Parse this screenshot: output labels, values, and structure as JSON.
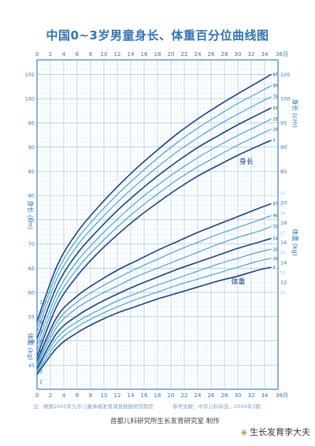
{
  "title": "中国0~3岁男童身长、体重百分位曲线图",
  "note": {
    "source": "注：根据2005年九市儿童体格发育调查数据研究制定",
    "reference": "参考文献：中华儿科杂志，2009年3期"
  },
  "credit": "首都儿科研究所生长发育研究室 制作",
  "watermark": {
    "icon": "wechat-like-logo",
    "text": "生长发育李大夫"
  },
  "colors": {
    "primary": "#1d3f8a",
    "outer_curve": "#1d3f8a",
    "inner_curve": "#38a0c8",
    "frame": "#2f73b8",
    "grid_minor": "#d5e8f3",
    "grid_major": "#8fbddd",
    "label": "#2f73b8"
  },
  "chart_data": {
    "type": "line",
    "title": "中国0~3岁男童身长、体重百分位曲线图",
    "x": {
      "label": "月",
      "end_label": "36月",
      "range": [
        0,
        36
      ],
      "ticks": [
        0,
        2,
        4,
        6,
        8,
        10,
        12,
        14,
        16,
        18,
        20,
        22,
        24,
        26,
        28,
        30,
        32,
        34
      ],
      "tick_labels": [
        "0",
        "2",
        "4",
        "6",
        "8",
        "10",
        "12",
        "14",
        "16",
        "18",
        "20",
        "22",
        "24",
        "26",
        "28",
        "30",
        "32",
        "34",
        "36月"
      ]
    },
    "y_left": {
      "range": [
        40,
        108
      ],
      "ticks": [
        45,
        50,
        55,
        60,
        65,
        70,
        75,
        80,
        85,
        90,
        95,
        100,
        105
      ]
    },
    "y_right_height": {
      "label": "身长 (cm)",
      "ticks": [
        85,
        90,
        95,
        100,
        105
      ]
    },
    "y_right_weight": {
      "label": "体重 (kg)",
      "range": [
        2,
        22
      ],
      "ticks": [
        12,
        14,
        16,
        18,
        20
      ],
      "minor_ticks": [
        11,
        13,
        15,
        17,
        19,
        21
      ]
    },
    "y_left_weight": {
      "label": "体重 (kg)",
      "ticks": [
        2,
        3,
        4,
        5,
        6,
        7,
        8,
        9,
        10
      ]
    },
    "y_left_height_label": "身长 (cm)",
    "groups": {
      "height": {
        "label": "身长",
        "unit": "cm",
        "x": [
          0,
          3,
          6,
          9,
          12,
          15,
          18,
          21,
          24,
          27,
          30,
          33,
          35
        ],
        "series": [
          {
            "name": "97",
            "values": [
              54.0,
              65.5,
              72.4,
              77.4,
              81.8,
              85.8,
              89.4,
              92.8,
              95.8,
              98.5,
              101.0,
              103.4,
              105.0
            ]
          },
          {
            "name": "90",
            "values": [
              52.9,
              64.2,
              71.0,
              75.9,
              80.2,
              84.1,
              87.7,
              91.0,
              93.9,
              96.5,
              99.0,
              101.2,
              102.7
            ]
          },
          {
            "name": "75",
            "values": [
              51.8,
              62.9,
              69.6,
              74.4,
              78.6,
              82.4,
              85.9,
              89.1,
              91.9,
              94.5,
              96.8,
              99.0,
              100.4
            ]
          },
          {
            "name": "50",
            "values": [
              50.4,
              61.4,
              68.0,
              72.7,
              76.9,
              80.6,
              84.0,
              87.1,
              89.9,
              92.3,
              94.6,
              96.7,
              98.1
            ]
          },
          {
            "name": "25",
            "values": [
              49.1,
              59.9,
              66.4,
              71.0,
              75.1,
              78.8,
              82.1,
              85.1,
              87.8,
              90.2,
              92.4,
              94.4,
              95.8
            ]
          },
          {
            "name": "10",
            "values": [
              47.9,
              58.6,
              64.9,
              69.5,
              73.5,
              77.1,
              80.3,
              83.3,
              85.9,
              88.2,
              90.4,
              92.4,
              93.7
            ]
          },
          {
            "name": "3",
            "values": [
              46.8,
              57.3,
              63.4,
              68.0,
              71.9,
              75.4,
              78.5,
              81.4,
              84.0,
              86.2,
              88.3,
              90.2,
              91.4
            ]
          }
        ]
      },
      "weight": {
        "label": "体重",
        "unit": "kg",
        "x": [
          0,
          3,
          6,
          9,
          12,
          15,
          18,
          21,
          24,
          27,
          30,
          33,
          35
        ],
        "series": [
          {
            "name": "97",
            "values": [
              4.1,
              8.5,
              10.6,
              12.0,
              13.2,
              14.2,
              15.2,
              16.1,
              17.0,
              17.8,
              18.6,
              19.4,
              19.9
            ]
          },
          {
            "name": "90",
            "values": [
              3.8,
              8.0,
              10.0,
              11.3,
              12.4,
              13.4,
              14.3,
              15.2,
              16.0,
              16.8,
              17.5,
              18.2,
              18.7
            ]
          },
          {
            "name": "75",
            "values": [
              3.6,
              7.5,
              9.4,
              10.6,
              11.6,
              12.6,
              13.4,
              14.2,
              15.0,
              15.8,
              16.5,
              17.1,
              17.6
            ]
          },
          {
            "name": "50",
            "values": [
              3.3,
              6.9,
              8.6,
              9.8,
              10.8,
              11.7,
              12.5,
              13.3,
              14.0,
              14.7,
              15.4,
              16.0,
              16.4
            ]
          },
          {
            "name": "25",
            "values": [
              3.1,
              6.4,
              8.0,
              9.1,
              10.1,
              10.9,
              11.7,
              12.4,
              13.1,
              13.8,
              14.4,
              15.0,
              15.3
            ]
          },
          {
            "name": "10",
            "values": [
              2.9,
              5.9,
              7.5,
              8.6,
              9.5,
              10.3,
              11.0,
              11.7,
              12.3,
              12.9,
              13.5,
              14.1,
              14.4
            ]
          },
          {
            "name": "3",
            "values": [
              2.7,
              5.4,
              6.9,
              8.0,
              8.9,
              9.6,
              10.3,
              10.9,
              11.5,
              12.1,
              12.6,
              13.2,
              13.5
            ]
          }
        ]
      }
    },
    "grid": true
  }
}
